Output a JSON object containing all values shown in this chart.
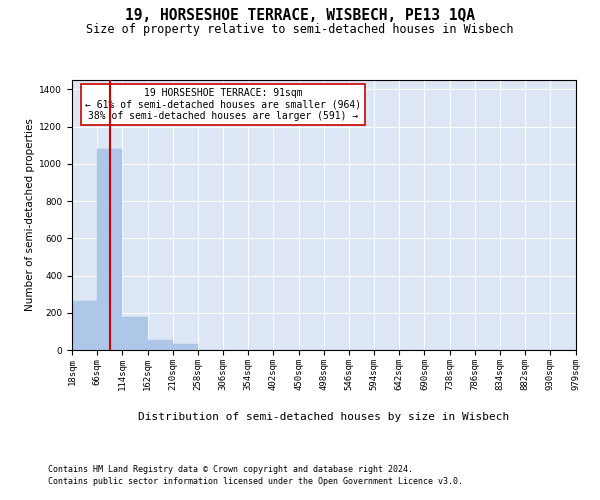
{
  "title": "19, HORSESHOE TERRACE, WISBECH, PE13 1QA",
  "subtitle": "Size of property relative to semi-detached houses in Wisbech",
  "xlabel": "Distribution of semi-detached houses by size in Wisbech",
  "ylabel": "Number of semi-detached properties",
  "footnote1": "Contains HM Land Registry data © Crown copyright and database right 2024.",
  "footnote2": "Contains public sector information licensed under the Open Government Licence v3.0.",
  "bin_edges": [
    18,
    66,
    114,
    162,
    210,
    258,
    306,
    354,
    402,
    450,
    498,
    546,
    594,
    642,
    690,
    738,
    786,
    834,
    882,
    930,
    979
  ],
  "bar_heights": [
    265,
    1080,
    175,
    55,
    30,
    0,
    0,
    0,
    0,
    0,
    0,
    0,
    0,
    0,
    0,
    0,
    0,
    0,
    0,
    0
  ],
  "bar_color": "#aec6e8",
  "bar_edge_color": "#aec6e8",
  "property_size": 91,
  "red_line_color": "#cc0000",
  "annotation_text": "19 HORSESHOE TERRACE: 91sqm\n← 61% of semi-detached houses are smaller (964)\n38% of semi-detached houses are larger (591) →",
  "annotation_box_color": "#ffffff",
  "annotation_box_edge_color": "#cc0000",
  "ylim": [
    0,
    1450
  ],
  "yticks": [
    0,
    200,
    400,
    600,
    800,
    1000,
    1200,
    1400
  ],
  "background_color": "#dce6f5",
  "grid_color": "#ffffff",
  "title_fontsize": 10.5,
  "subtitle_fontsize": 8.5,
  "ylabel_fontsize": 7.5,
  "xlabel_fontsize": 8,
  "tick_fontsize": 6.5,
  "annotation_fontsize": 7,
  "footnote_fontsize": 6
}
